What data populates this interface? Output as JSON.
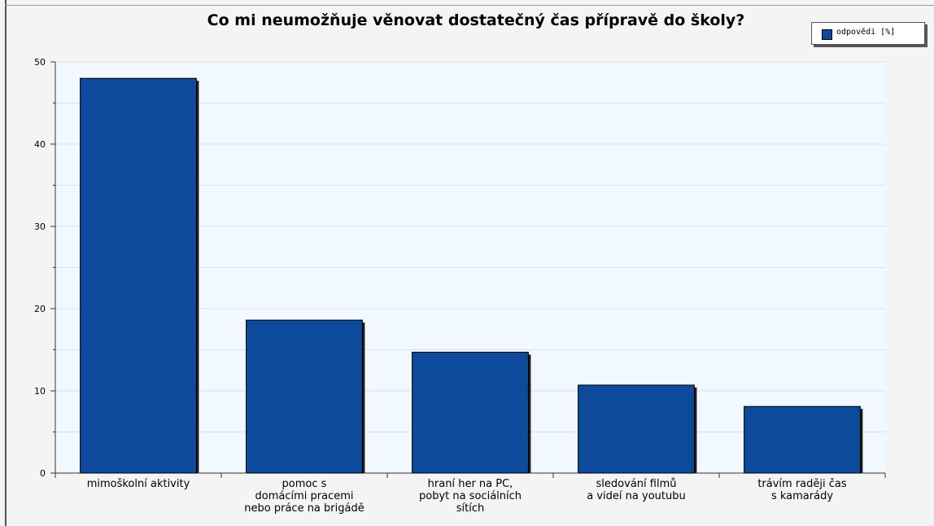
{
  "chart_data": {
    "type": "bar",
    "title": "Co mi neumožňuje věnovat dostatečný čas přípravě do školy?",
    "xlabel": "",
    "ylabel": "",
    "categories": [
      [
        "mimoškolní aktivity"
      ],
      [
        "pomoc s",
        "domácími pracemi",
        "nebo práce na brigádě"
      ],
      [
        "hraní her na PC,",
        "pobyt na sociálních",
        "sítích"
      ],
      [
        "sledování filmů",
        "a videí na youtubu"
      ],
      [
        "trávím raději čas",
        "s kamarády"
      ]
    ],
    "series": [
      {
        "name": "odpovědi [%]",
        "values": [
          48,
          18.6,
          14.7,
          10.7,
          8.1
        ]
      }
    ],
    "ylim": [
      0,
      50
    ],
    "yticks": [
      0,
      10,
      20,
      30,
      40,
      50
    ],
    "grid": true,
    "legend_position": "top-right",
    "colors": {
      "bar": "#0d4a9c",
      "plot_background": "#f2f8ff",
      "frame_background": "#f4f4f4",
      "grid": "#d8e0ea"
    }
  }
}
